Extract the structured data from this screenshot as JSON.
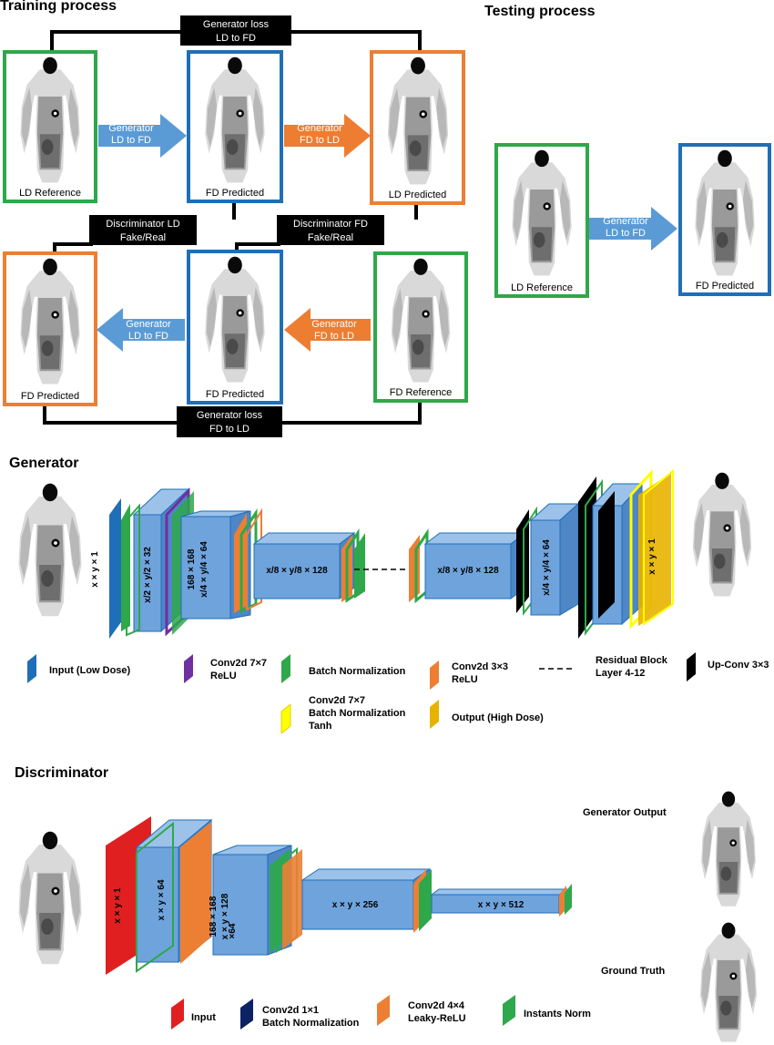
{
  "titles": {
    "training": "Training process",
    "testing": "Testing process",
    "generator": "Generator",
    "discriminator": "Discriminator"
  },
  "frames": {
    "ld_reference": "LD Reference",
    "fd_predicted": "FD Predicted",
    "ld_predicted": "LD Predicted",
    "fd_reference": "FD Reference"
  },
  "boxes": {
    "gen_loss_top": [
      "Generator loss",
      "LD to FD"
    ],
    "gen_loss_bottom": [
      "Generator loss",
      "FD to LD"
    ],
    "disc_ld": [
      "Discriminator LD",
      "Fake/Real"
    ],
    "disc_fd": [
      "Discriminator FD",
      "Fake/Real"
    ]
  },
  "arrows": {
    "gen_ld_fd": [
      "Generator",
      "LD to FD"
    ],
    "gen_fd_ld": [
      "Generator",
      "FD to LD"
    ]
  },
  "generator_net": {
    "input_dim": "x × y × 1",
    "l1": "x/2 × y/2 × 32",
    "l2a": "168 × 168",
    "l2b": "x/4 × y/4 × 64",
    "l3": "x/8 × y/8 × 128",
    "l4": "x/8 × y/8 × 128",
    "l5": "x/4 × y/4 × 64",
    "out_dim": "x × y × 1"
  },
  "generator_legend": {
    "input": "Input (Low Dose)",
    "conv77": [
      "Conv2d 7×7",
      "ReLU"
    ],
    "bn": "Batch Normalization",
    "conv33": [
      "Conv2d 3×3",
      "ReLU"
    ],
    "residual": [
      "Residual Block",
      "Layer 4-12"
    ],
    "upconv": "Up-Conv 3×3",
    "conv77tanh": [
      "Conv2d 7×7",
      "Batch Normalization",
      "Tanh"
    ],
    "output": "Output  (High Dose)"
  },
  "discriminator_net": {
    "l0": "x × y × 1",
    "l1": "x × y × 64",
    "l2a": "168 × 168",
    "l2b": "x × y × 128",
    "l2c": "×64",
    "l3": "x × y × 256",
    "l4": "x × y × 512"
  },
  "discriminator_side": {
    "gen_output": "Generator Output",
    "ground_truth": "Ground Truth"
  },
  "discriminator_legend": {
    "input": "Input",
    "conv11": [
      "Conv2d 1×1",
      "Batch Normalization"
    ],
    "conv44": [
      "Conv2d 4×4",
      " Leaky-ReLU"
    ],
    "inorm": "Instants Norm"
  },
  "colors": {
    "green": "#2ea84a",
    "blue": "#1f6fb8",
    "orange": "#ec7f33",
    "arrow_blue": "#5b9bd5",
    "arrow_orange": "#ed7d31",
    "block": "#6fa3dc",
    "purple": "#7030a0",
    "yellow": "#ffff00",
    "gold": "#e8b200",
    "red": "#e02020",
    "navy": "#0b2265",
    "black": "#000000"
  }
}
